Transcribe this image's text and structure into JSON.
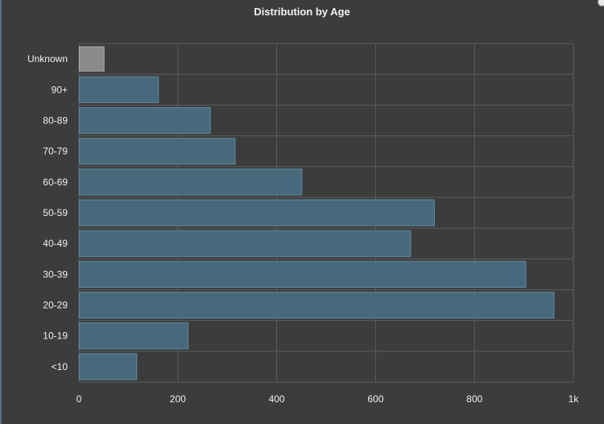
{
  "chart_data": {
    "type": "bar",
    "orientation": "horizontal",
    "title": "Distribution by Age",
    "categories": [
      "Unknown",
      "90+",
      "80-89",
      "70-79",
      "60-69",
      "50-59",
      "40-49",
      "30-39",
      "20-29",
      "10-19",
      "<10"
    ],
    "values": [
      50,
      160,
      265,
      315,
      450,
      718,
      670,
      903,
      960,
      220,
      116
    ],
    "xlim": [
      0,
      1000
    ],
    "xticks": [
      0,
      200,
      400,
      600,
      800,
      1000
    ],
    "xtick_labels": [
      "0",
      "200",
      "400",
      "600",
      "800",
      "1k"
    ],
    "grid": true,
    "colors": {
      "bar": "#48697b",
      "bar_border": "#5f8aa0",
      "unknown_bar": "#8a8a8a",
      "unknown_border": "#b0b0b0",
      "grid": "#5c5c5c",
      "background": "#3c3c3c"
    }
  }
}
